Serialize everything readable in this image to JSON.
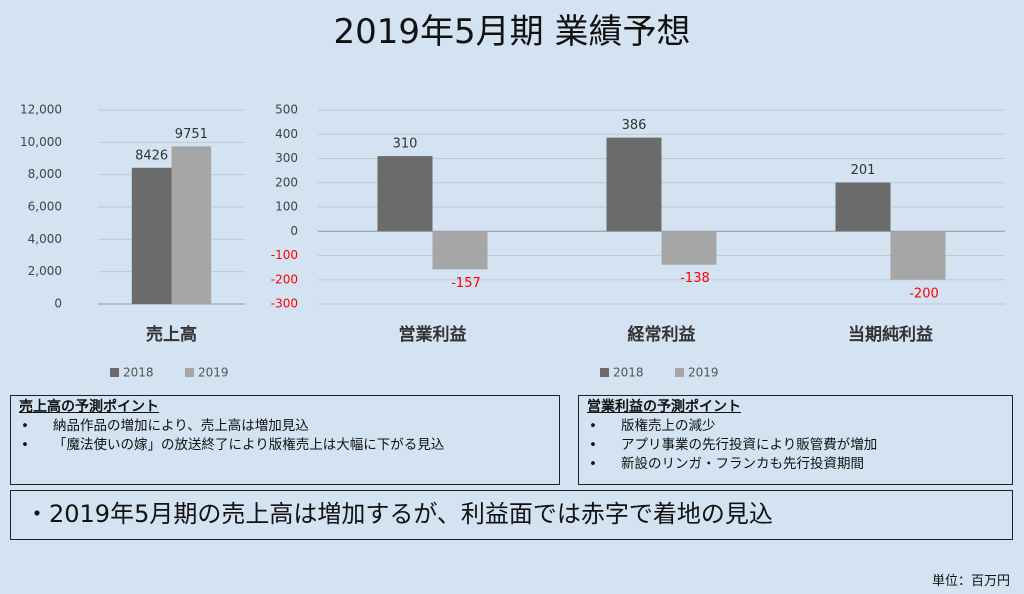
{
  "title": "2019年5月期 業績予想",
  "chart_data": [
    {
      "type": "bar",
      "categories": [
        "売上高"
      ],
      "series": [
        {
          "name": "2018",
          "color": "#6b6b6b",
          "values": [
            8426
          ]
        },
        {
          "name": "2019",
          "color": "#a6a6a6",
          "values": [
            9751
          ]
        }
      ],
      "ylim": [
        0,
        12000
      ],
      "yticks": [
        0,
        {
          "value": 2000,
          "label": "2,000"
        },
        {
          "value": 4000,
          "label": "4,000"
        },
        {
          "value": 6000,
          "label": "6,000"
        },
        {
          "value": 8000,
          "label": "8,000"
        },
        {
          "value": 10000,
          "label": "10,000"
        },
        {
          "value": 12000,
          "label": "12,000"
        }
      ],
      "grid": true,
      "legend": "bottom"
    },
    {
      "type": "bar",
      "categories": [
        "営業利益",
        "経常利益",
        "当期純利益"
      ],
      "series": [
        {
          "name": "2018",
          "color": "#6b6b6b",
          "values": [
            310,
            386,
            201
          ]
        },
        {
          "name": "2019",
          "color": "#a6a6a6",
          "values": [
            -157,
            -138,
            -200
          ]
        }
      ],
      "ylim": [
        -300,
        500
      ],
      "yticks": [
        -300,
        -200,
        -100,
        0,
        100,
        200,
        300,
        400,
        500
      ],
      "grid": true,
      "legend": "bottom",
      "negative_color": "#ff0000"
    }
  ],
  "boxes": [
    {
      "heading": "売上高の予測ポイント",
      "items": [
        "納品作品の増加により、売上高は増加見込",
        "「魔法使いの嫁」の放送終了により版権売上は大幅に下がる見込"
      ]
    },
    {
      "heading": "営業利益の予測ポイント",
      "items": [
        "版権売上の減少",
        "アプリ事業の先行投資により販管費が増加",
        "新設のリンガ・フランカも先行投資期間"
      ]
    }
  ],
  "summary": "・2019年5月期の売上高は増加するが、利益面では赤字で着地の見込",
  "unit_note": "単位：百万円"
}
